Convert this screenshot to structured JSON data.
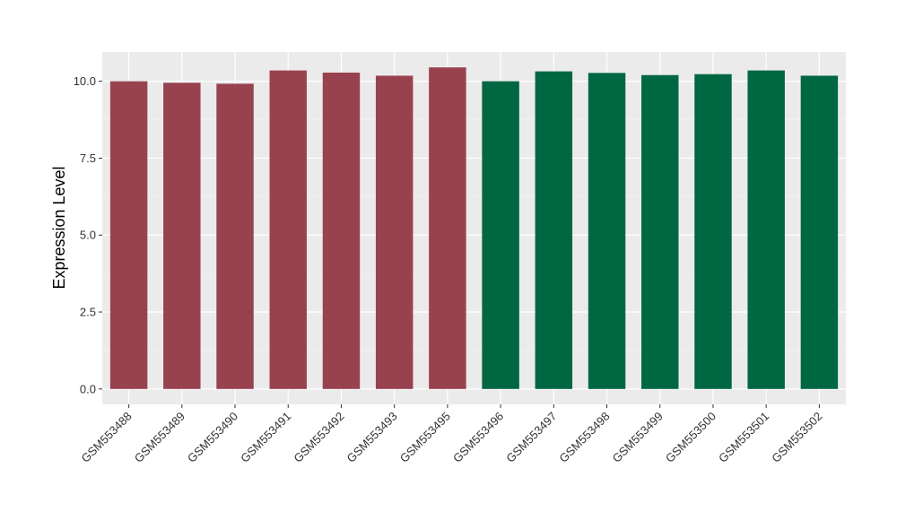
{
  "chart_data": {
    "type": "bar",
    "title": "",
    "xlabel": "",
    "ylabel": "Expression Level",
    "ylim": [
      -0.5,
      10.95
    ],
    "yticks": [
      0.0,
      2.5,
      5.0,
      7.5,
      10.0
    ],
    "ytick_labels": [
      "0.0",
      "2.5",
      "5.0",
      "7.5",
      "10.0"
    ],
    "grid": true,
    "panel_background": "#EBEBEB",
    "categories": [
      "GSM553488",
      "GSM553489",
      "GSM553490",
      "GSM553491",
      "GSM553492",
      "GSM553493",
      "GSM553495",
      "GSM553496",
      "GSM553497",
      "GSM553498",
      "GSM553499",
      "GSM553500",
      "GSM553501",
      "GSM553502"
    ],
    "values": [
      10.0,
      9.95,
      9.92,
      10.35,
      10.28,
      10.18,
      10.45,
      10.0,
      10.32,
      10.27,
      10.2,
      10.23,
      10.35,
      10.18
    ],
    "bar_colors": [
      "#99424F",
      "#99424F",
      "#99424F",
      "#99424F",
      "#99424F",
      "#99424F",
      "#99424F",
      "#006743",
      "#006743",
      "#006743",
      "#006743",
      "#006743",
      "#006743",
      "#006743"
    ]
  }
}
